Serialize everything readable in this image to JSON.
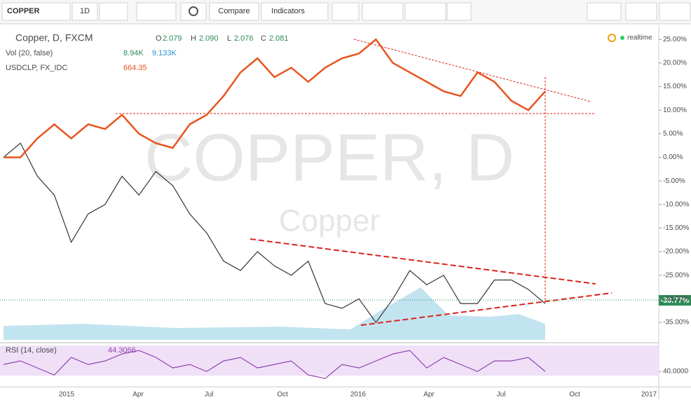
{
  "toolbar": {
    "symbol": "COPPER",
    "interval": "1D",
    "compare": "Compare",
    "indicators": "Indicators"
  },
  "legend": {
    "o_label": "O",
    "o": "2.079",
    "h_label": "H",
    "h": "2.090",
    "l_label": "L",
    "l": "2.076",
    "c_label": "C",
    "c": "2.081",
    "vol_name": "Vol (20, false)",
    "vol1": "8.94K",
    "vol2": "9.133K",
    "usdclp_value": "664.35",
    "rsi_value": "44.3066",
    "realtime": "realtime"
  },
  "watermark": {
    "main": "COPPER, D",
    "sub": "Copper"
  },
  "price_badge": "-30.77%",
  "time_axis": [
    "2015",
    "Apr",
    "Jul",
    "Oct",
    "2016",
    "Apr",
    "Jul",
    "Oct",
    "2017"
  ],
  "chart_data": [
    {
      "type": "line",
      "ylim": [
        -39,
        28
      ],
      "yticks": [
        {
          "value": 25,
          "label": "25.00%"
        },
        {
          "value": 20,
          "label": "20.00%"
        },
        {
          "value": 15,
          "label": "15.00%"
        },
        {
          "value": 10,
          "label": "10.00%"
        },
        {
          "value": 5,
          "label": "5.00%"
        },
        {
          "value": 0,
          "label": "0.00%"
        },
        {
          "value": -5,
          "label": "-5.00%"
        },
        {
          "value": -10,
          "label": "-10.00%"
        },
        {
          "value": -15,
          "label": "-15.00%"
        },
        {
          "value": -20,
          "label": "-20.00%"
        },
        {
          "value": -25,
          "label": "-25.00%"
        },
        {
          "value": -30,
          "label": "-30.00%"
        },
        {
          "value": -35,
          "label": "-35.00%"
        }
      ],
      "grid": false,
      "series": [
        {
          "name": "Copper, D, FXCM",
          "color": "#333333",
          "values": [
            0,
            3,
            -4,
            -8,
            -18,
            -12,
            -10,
            -4,
            -8,
            -3,
            -6,
            -12,
            -16,
            -22,
            -24,
            -20,
            -23,
            -25,
            -22,
            -31,
            -32,
            -30,
            -35,
            -30,
            -24,
            -27,
            -25,
            -31,
            -31,
            -26,
            -26,
            -28,
            -31
          ]
        },
        {
          "name": "USDCLP, FX_IDC",
          "color": "#e8541e",
          "values": [
            0,
            0,
            4,
            7,
            4,
            7,
            6,
            9,
            5,
            3,
            2,
            7,
            9,
            13,
            18,
            21,
            17,
            19,
            16,
            19,
            21,
            22,
            25,
            20,
            18,
            16,
            14,
            13,
            18,
            16,
            12,
            10,
            14
          ]
        }
      ]
    },
    {
      "type": "line",
      "ylim": [
        20,
        80
      ],
      "yticks": [
        {
          "value": 40,
          "label": "40.0000"
        }
      ],
      "series": [
        {
          "name": "RSI (14, close)",
          "color": "#8e44ad",
          "values": [
            50,
            55,
            45,
            35,
            60,
            50,
            55,
            65,
            70,
            60,
            45,
            50,
            40,
            55,
            60,
            45,
            50,
            55,
            35,
            30,
            50,
            45,
            55,
            65,
            70,
            45,
            60,
            50,
            40,
            55,
            55,
            60,
            40
          ]
        }
      ]
    }
  ]
}
